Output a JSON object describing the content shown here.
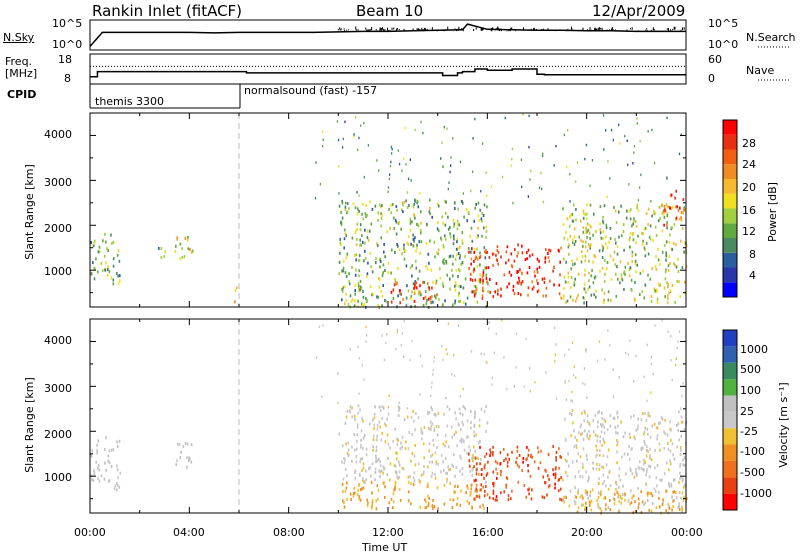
{
  "header": {
    "station": "Rankin Inlet (fitACF)",
    "beam": "Beam 10",
    "date": "12/Apr/2009"
  },
  "nsky_panel": {
    "left_label": "N.Sky",
    "left_ticks": [
      "10^5",
      "10^0"
    ],
    "right_ticks": [
      "10^5",
      "10^0"
    ],
    "right_label": "N.Search"
  },
  "freq_panel": {
    "left_label_1": "Freq.",
    "left_label_2": "[MHz]",
    "left_ticks": [
      "18",
      "8"
    ],
    "right_ticks": [
      "60",
      "0"
    ],
    "right_label": "Nave"
  },
  "cpid_panel": {
    "label": "CPID",
    "modes": [
      "themis 3300",
      "normalsound (fast) -157"
    ]
  },
  "power_panel": {
    "ylabel": "Slant Range [km]",
    "yticks": [
      "4000",
      "3000",
      "2000",
      "1000"
    ],
    "colorbar_label": "Power [dB]",
    "colorbar_ticks": [
      "28",
      "24",
      "20",
      "16",
      "12",
      "8",
      "4"
    ],
    "colors": [
      "#0000ff",
      "#2838a8",
      "#2a5ea0",
      "#4a8a60",
      "#60aa40",
      "#a0d040",
      "#f0e020",
      "#f8b830",
      "#f08c20",
      "#f06010",
      "#e83010",
      "#ff0000"
    ]
  },
  "velocity_panel": {
    "ylabel": "Slant Range [km]",
    "yticks": [
      "4000",
      "3000",
      "2000",
      "1000"
    ],
    "colorbar_label": "Velocity [m s⁻¹]",
    "colorbar_ticks": [
      "1000",
      "500",
      "100",
      "25",
      "-25",
      "-100",
      "-500",
      "-1000"
    ],
    "colors": [
      "#2040c0",
      "#3060b0",
      "#3a8a60",
      "#50b040",
      "#c0c0c0",
      "#c8c8c8",
      "#f0c030",
      "#f09020",
      "#f07020",
      "#e84010",
      "#ff0000"
    ]
  },
  "x_axis": {
    "ticks": [
      "00:00",
      "04:00",
      "08:00",
      "12:00",
      "16:00",
      "20:00",
      "00:00"
    ],
    "label": "Time UT"
  },
  "chart_data": [
    {
      "type": "line",
      "name": "N.Sky / N.Search",
      "x_hours": [
        0,
        0.5,
        1,
        2,
        3,
        4,
        5,
        6,
        7,
        8,
        9,
        10,
        11,
        12,
        13,
        14,
        15,
        15.2,
        16,
        17,
        18,
        19,
        20,
        21,
        22,
        23,
        24
      ],
      "log10_nsky": [
        0.3,
        3.0,
        3.0,
        3.0,
        3.0,
        3.0,
        2.9,
        3.0,
        3.0,
        3.0,
        3.0,
        3.1,
        3.2,
        3.2,
        3.3,
        3.4,
        3.5,
        4.6,
        3.6,
        3.5,
        3.4,
        3.4,
        3.3,
        3.3,
        3.2,
        3.2,
        3.2
      ]
    },
    {
      "type": "line",
      "name": "Freq / Nave",
      "x_hours": [
        0,
        0.3,
        1,
        4,
        6,
        6.3,
        10,
        14,
        14.2,
        14.8,
        15,
        15.5,
        16,
        17,
        18,
        18.3,
        20,
        24
      ],
      "freq_mhz": [
        10,
        12,
        12,
        12,
        12,
        11.5,
        11.5,
        11.5,
        10.5,
        11.5,
        12,
        13,
        12.5,
        13,
        11,
        10.8,
        10.8,
        10.8
      ],
      "nave_reference_dotted": 36
    },
    {
      "type": "heatmap",
      "name": "Power",
      "x_range_hours": [
        0,
        24
      ],
      "y_range_km": [
        180,
        4500
      ],
      "z_range_db": [
        0,
        30
      ],
      "regions": [
        {
          "t": [
            0.0,
            1.2
          ],
          "r": [
            700,
            1900
          ],
          "db": 12
        },
        {
          "t": [
            2.5,
            3.0
          ],
          "r": [
            1300,
            1600
          ],
          "db": 10
        },
        {
          "t": [
            3.4,
            4.2
          ],
          "r": [
            1200,
            1800
          ],
          "db": 16
        },
        {
          "t": [
            5.8,
            6.0
          ],
          "r": [
            200,
            700
          ],
          "db": 18
        },
        {
          "t": [
            10.0,
            16.0
          ],
          "r": [
            200,
            2600
          ],
          "db": 12
        },
        {
          "t": [
            12.0,
            14.0
          ],
          "r": [
            300,
            800
          ],
          "db": 26
        },
        {
          "t": [
            15.2,
            19.0
          ],
          "r": [
            400,
            1600
          ],
          "db": 26
        },
        {
          "t": [
            19.0,
            24.0
          ],
          "r": [
            300,
            2500
          ],
          "db": 14
        },
        {
          "t": [
            23.0,
            24.0
          ],
          "r": [
            2000,
            2800
          ],
          "db": 24
        }
      ]
    },
    {
      "type": "heatmap",
      "name": "Velocity",
      "x_range_hours": [
        0,
        24
      ],
      "y_range_km": [
        180,
        4500
      ],
      "z_range_ms": [
        -1000,
        1000
      ],
      "regions": [
        {
          "t": [
            0.0,
            1.2
          ],
          "r": [
            700,
            1900
          ],
          "v": 100
        },
        {
          "t": [
            3.4,
            4.2
          ],
          "r": [
            1200,
            1800
          ],
          "v": 100
        },
        {
          "t": [
            10.0,
            16.0
          ],
          "r": [
            300,
            900
          ],
          "v": -300
        },
        {
          "t": [
            10.0,
            16.0
          ],
          "r": [
            900,
            2600
          ],
          "v": 0
        },
        {
          "t": [
            15.2,
            19.0
          ],
          "r": [
            500,
            1700
          ],
          "v": -700
        },
        {
          "t": [
            19.0,
            24.0
          ],
          "r": [
            300,
            2500
          ],
          "v": 0
        },
        {
          "t": [
            19.0,
            24.0
          ],
          "r": [
            200,
            700
          ],
          "v": -300
        }
      ]
    }
  ]
}
